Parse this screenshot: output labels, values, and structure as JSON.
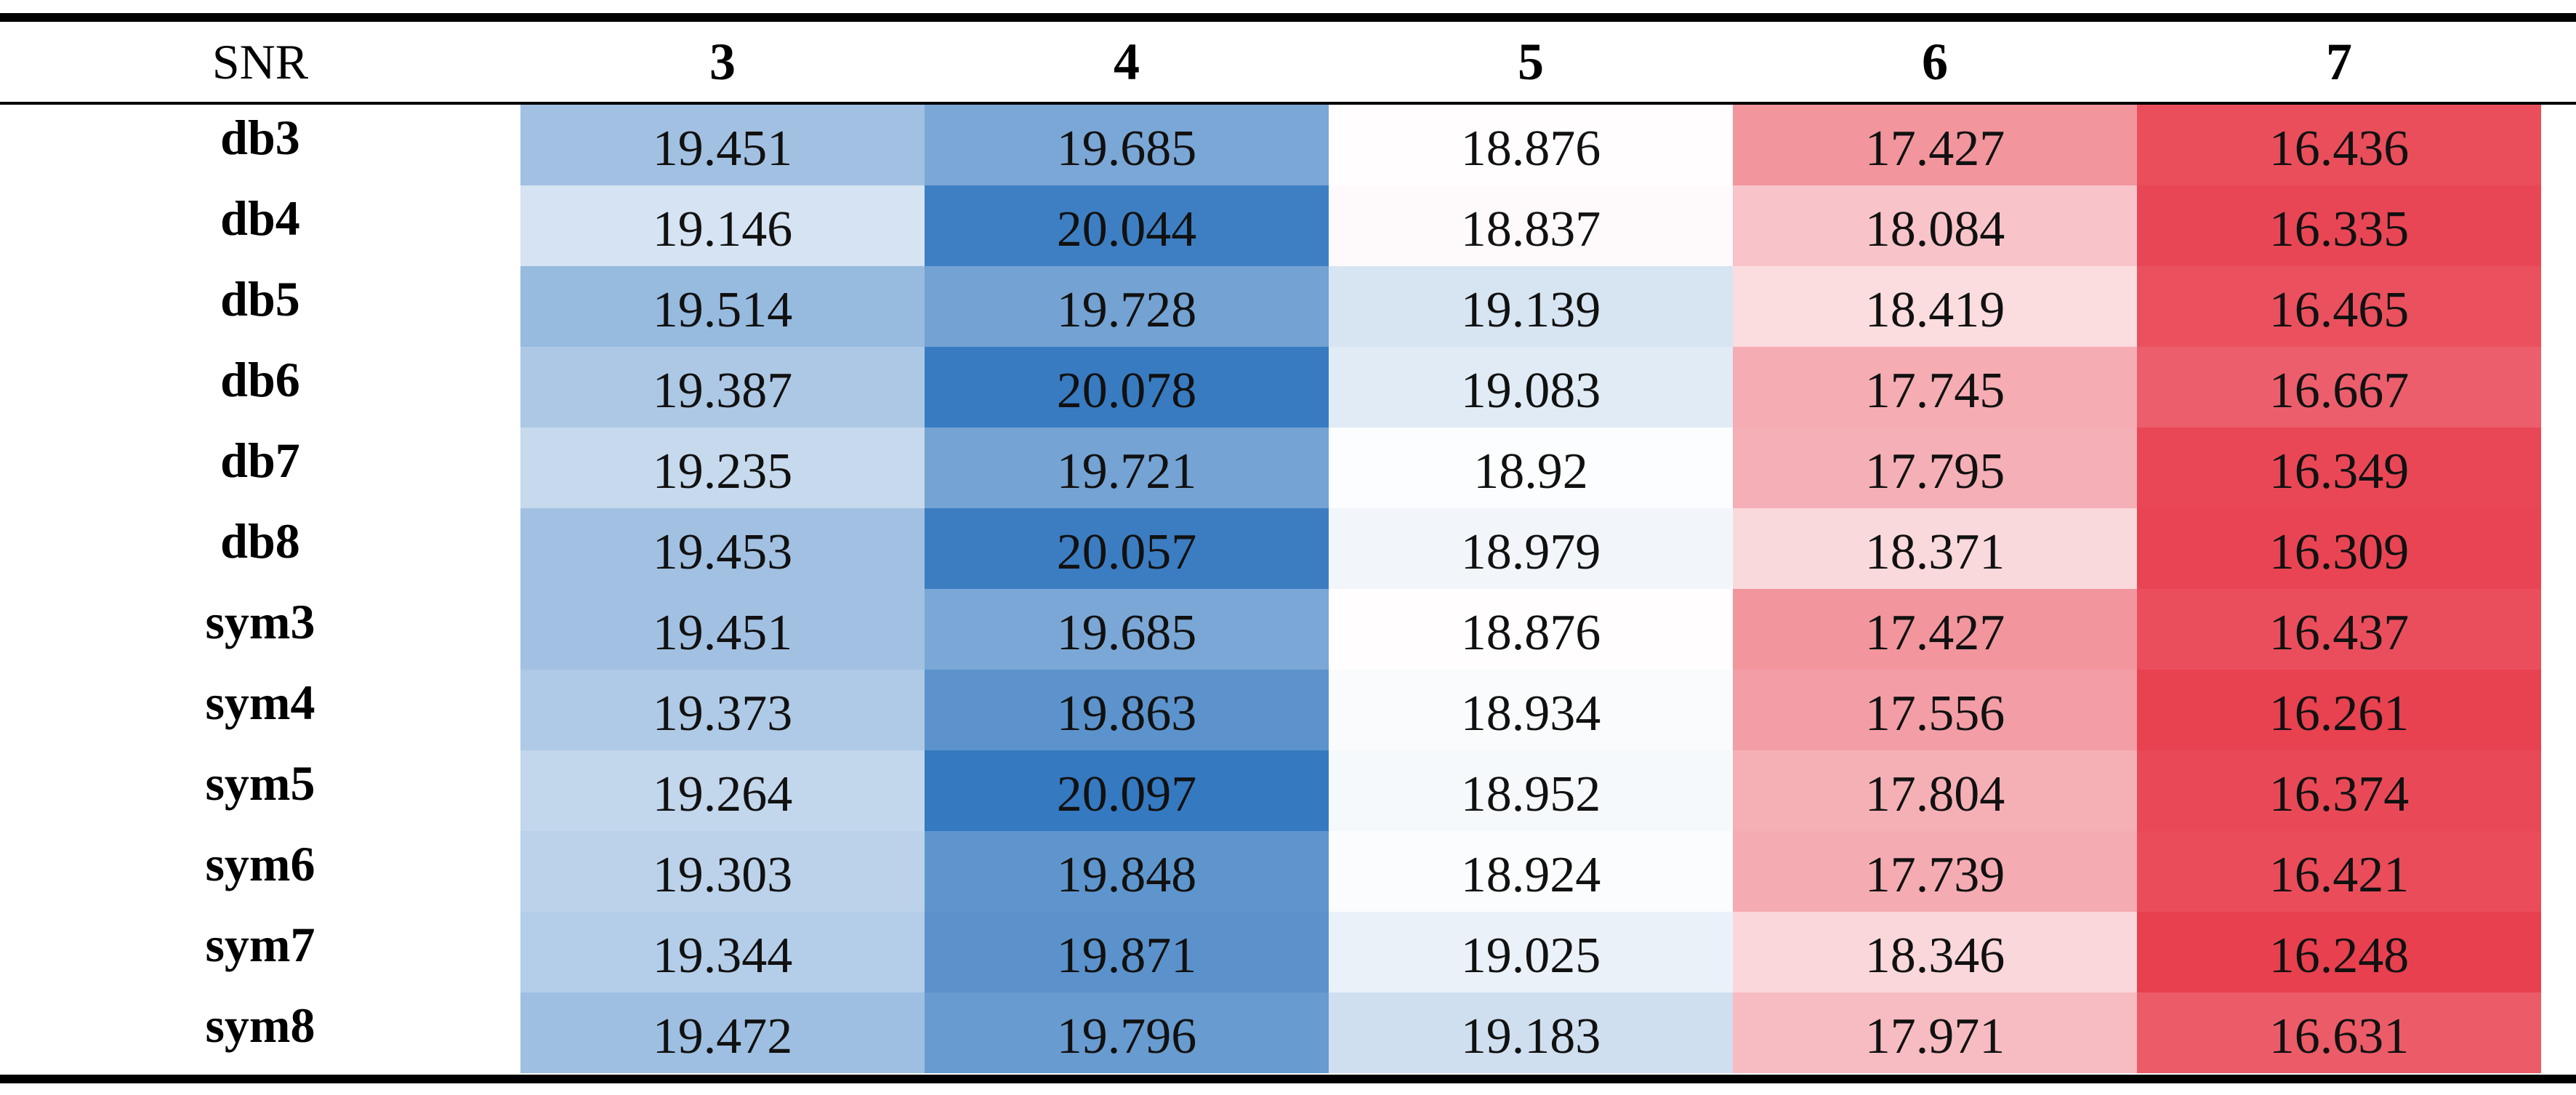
{
  "chart_data": {
    "type": "table",
    "header_label": "SNR",
    "columns": [
      "3",
      "4",
      "5",
      "6",
      "7"
    ],
    "rows": [
      {
        "label": "db3",
        "values": [
          "19.451",
          "19.685",
          "18.876",
          "17.427",
          "16.436"
        ]
      },
      {
        "label": "db4",
        "values": [
          "19.146",
          "20.044",
          "18.837",
          "18.084",
          "16.335"
        ]
      },
      {
        "label": "db5",
        "values": [
          "19.514",
          "19.728",
          "19.139",
          "18.419",
          "16.465"
        ]
      },
      {
        "label": "db6",
        "values": [
          "19.387",
          "20.078",
          "19.083",
          "17.745",
          "16.667"
        ]
      },
      {
        "label": "db7",
        "values": [
          "19.235",
          "19.721",
          "18.92",
          "17.795",
          "16.349"
        ]
      },
      {
        "label": "db8",
        "values": [
          "19.453",
          "20.057",
          "18.979",
          "18.371",
          "16.309"
        ]
      },
      {
        "label": "sym3",
        "values": [
          "19.451",
          "19.685",
          "18.876",
          "17.427",
          "16.437"
        ]
      },
      {
        "label": "sym4",
        "values": [
          "19.373",
          "19.863",
          "18.934",
          "17.556",
          "16.261"
        ]
      },
      {
        "label": "sym5",
        "values": [
          "19.264",
          "20.097",
          "18.952",
          "17.804",
          "16.374"
        ]
      },
      {
        "label": "sym6",
        "values": [
          "19.303",
          "19.848",
          "18.924",
          "17.739",
          "16.421"
        ]
      },
      {
        "label": "sym7",
        "values": [
          "19.344",
          "19.871",
          "19.025",
          "18.346",
          "16.248"
        ]
      },
      {
        "label": "sym8",
        "values": [
          "19.472",
          "19.796",
          "19.183",
          "17.971",
          "16.631"
        ]
      }
    ],
    "colors": {
      "high": "#3579c0",
      "mid": "#ffffff",
      "low": "#e8404f"
    },
    "color_scale": {
      "min": 16.248,
      "mid": 18.9,
      "max": 20.097
    }
  }
}
